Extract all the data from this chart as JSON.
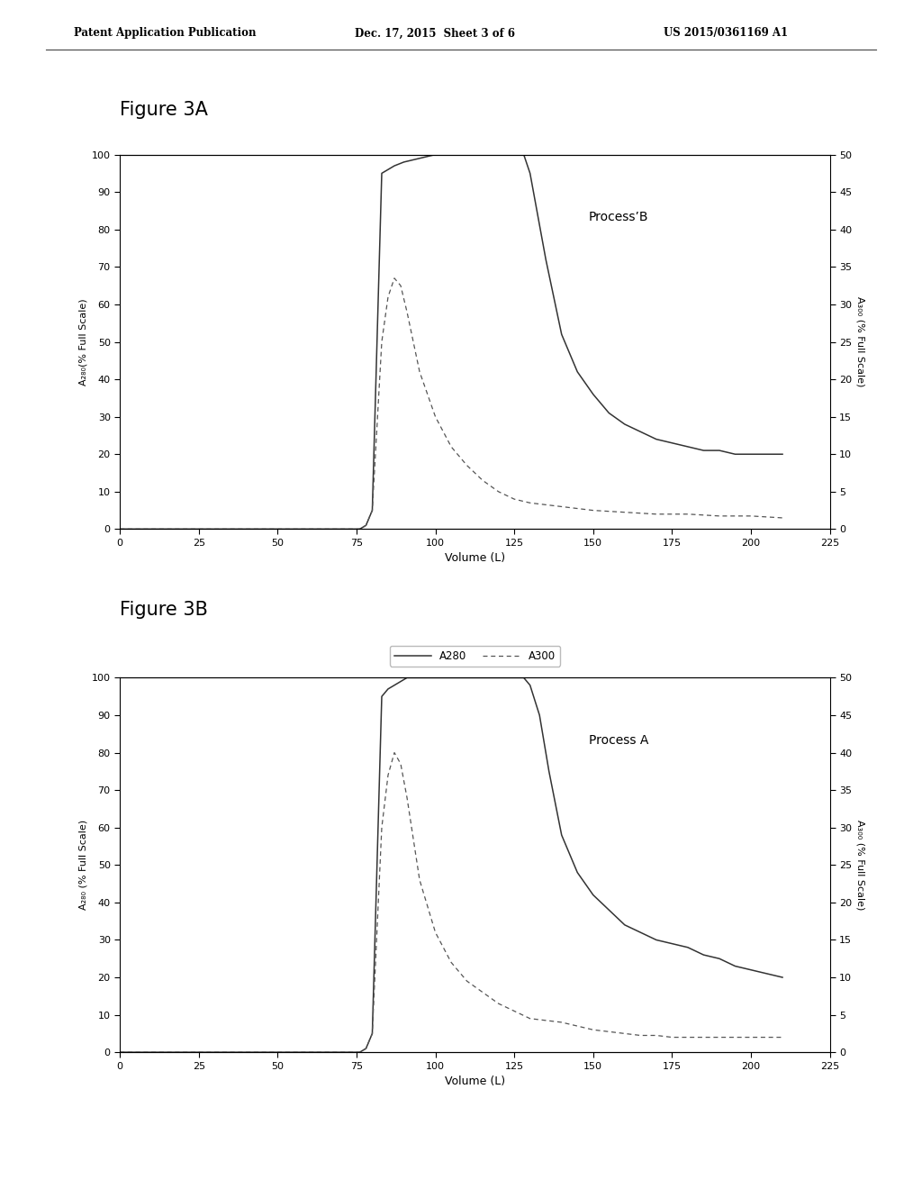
{
  "header_left": "Patent Application Publication",
  "header_mid": "Dec. 17, 2015  Sheet 3 of 6",
  "header_right": "US 2015/0361169 A1",
  "fig3A_title": "Figure 3A",
  "fig3B_title": "Figure 3B",
  "label_process_A": "Process A",
  "label_process_B": "ProcessʼB",
  "xlabel": "Volume (L)",
  "ylabel_left_A": "A₂₈₀(% Full Scale)",
  "ylabel_left_B": "A₂₈₀ (% Full Scale)",
  "ylabel_right": "A₃₀₀ (% Full Scale)",
  "xlim": [
    0,
    225
  ],
  "xticks": [
    0,
    25,
    50,
    75,
    100,
    125,
    150,
    175,
    200,
    225
  ],
  "ylim_left": [
    0,
    100
  ],
  "ylim_right": [
    0,
    50
  ],
  "yticks_left": [
    0,
    10,
    20,
    30,
    40,
    50,
    60,
    70,
    80,
    90,
    100
  ],
  "yticks_right": [
    0,
    5,
    10,
    15,
    20,
    25,
    30,
    35,
    40,
    45,
    50
  ],
  "legend_A280": "A280",
  "legend_A300": "A300",
  "background_color": "#ffffff",
  "fig3A": {
    "A280_x": [
      0,
      74,
      76,
      78,
      80,
      83,
      85,
      87,
      90,
      95,
      100,
      110,
      120,
      125,
      128,
      130,
      135,
      140,
      145,
      150,
      155,
      160,
      165,
      170,
      175,
      180,
      185,
      190,
      195,
      200,
      205,
      210
    ],
    "A280_y": [
      0,
      0,
      0,
      1,
      5,
      95,
      96,
      97,
      98,
      99,
      100,
      100,
      100,
      100,
      100,
      95,
      72,
      52,
      42,
      36,
      31,
      28,
      26,
      24,
      23,
      22,
      21,
      21,
      20,
      20,
      20,
      20
    ],
    "A300_x": [
      0,
      74,
      76,
      78,
      80,
      83,
      85,
      87,
      89,
      91,
      93,
      95,
      100,
      105,
      110,
      115,
      120,
      125,
      130,
      140,
      150,
      160,
      170,
      180,
      190,
      200,
      210
    ],
    "A300_y": [
      0,
      0,
      0,
      1,
      5,
      50,
      62,
      67,
      65,
      58,
      50,
      42,
      30,
      22,
      17,
      13,
      10,
      8,
      7,
      6,
      5,
      4.5,
      4,
      4,
      3.5,
      3.5,
      3
    ]
  },
  "fig3B": {
    "A280_x": [
      0,
      74,
      76,
      78,
      80,
      83,
      85,
      87,
      89,
      91,
      93,
      95,
      100,
      105,
      110,
      115,
      120,
      125,
      128,
      130,
      133,
      136,
      140,
      145,
      150,
      155,
      160,
      165,
      170,
      175,
      180,
      185,
      190,
      195,
      200,
      205,
      210
    ],
    "A280_y": [
      0,
      0,
      0,
      1,
      5,
      95,
      97,
      98,
      99,
      100,
      100,
      100,
      100,
      100,
      100,
      100,
      100,
      100,
      100,
      98,
      90,
      75,
      58,
      48,
      42,
      38,
      34,
      32,
      30,
      29,
      28,
      26,
      25,
      23,
      22,
      21,
      20
    ],
    "A300_x": [
      0,
      74,
      76,
      78,
      80,
      83,
      85,
      87,
      89,
      91,
      93,
      95,
      100,
      105,
      110,
      115,
      120,
      125,
      130,
      140,
      150,
      155,
      160,
      165,
      170,
      175,
      180,
      185,
      190,
      195,
      200,
      210
    ],
    "A300_y": [
      0,
      0,
      0,
      1,
      5,
      60,
      74,
      80,
      77,
      68,
      57,
      46,
      32,
      24,
      19,
      16,
      13,
      11,
      9,
      8,
      6,
      5.5,
      5,
      4.5,
      4.5,
      4,
      4,
      4,
      4,
      4,
      4,
      4
    ]
  }
}
